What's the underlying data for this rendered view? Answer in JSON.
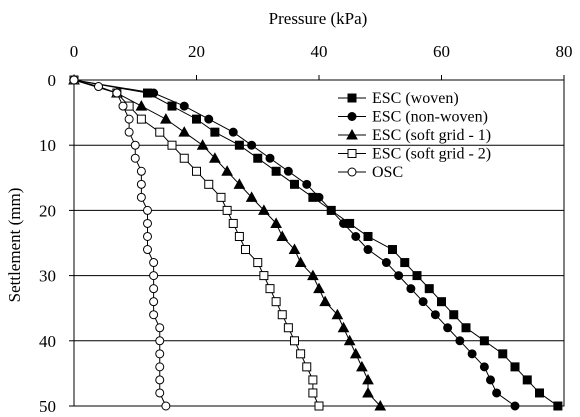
{
  "chart_data": {
    "type": "line",
    "title": "",
    "xlabel": "Pressure (kPa)",
    "ylabel": "Settlement (mm)",
    "x_axis_position": "top",
    "y_axis_inverted": true,
    "xlim": [
      0,
      80
    ],
    "ylim": [
      0,
      50
    ],
    "xticks": [
      "0",
      "20",
      "40",
      "60",
      "80"
    ],
    "yticks": [
      "0",
      "10",
      "20",
      "30",
      "40",
      "50"
    ],
    "grid": "horizontal",
    "legend_position": "top-right",
    "series": [
      {
        "name": "ESC (woven)",
        "marker": "square-filled",
        "points": [
          [
            0,
            0
          ],
          [
            12,
            2
          ],
          [
            16,
            4
          ],
          [
            20,
            6
          ],
          [
            23,
            8
          ],
          [
            27,
            10
          ],
          [
            30,
            12
          ],
          [
            33,
            14
          ],
          [
            36,
            16
          ],
          [
            39,
            18
          ],
          [
            42,
            20
          ],
          [
            45,
            22
          ],
          [
            48,
            24
          ],
          [
            52,
            26
          ],
          [
            54,
            28
          ],
          [
            56,
            30
          ],
          [
            58,
            32
          ],
          [
            60,
            34
          ],
          [
            62,
            36
          ],
          [
            64,
            38
          ],
          [
            67,
            40
          ],
          [
            70,
            42
          ],
          [
            72,
            44
          ],
          [
            74,
            46
          ],
          [
            76,
            48
          ],
          [
            79,
            50
          ]
        ]
      },
      {
        "name": "ESC (non-woven)",
        "marker": "circle-filled",
        "points": [
          [
            0,
            0
          ],
          [
            13,
            2
          ],
          [
            18,
            4
          ],
          [
            22,
            6
          ],
          [
            26,
            8
          ],
          [
            29,
            10
          ],
          [
            32,
            12
          ],
          [
            35,
            14
          ],
          [
            38,
            16
          ],
          [
            40,
            18
          ],
          [
            42,
            20
          ],
          [
            44,
            22
          ],
          [
            46,
            24
          ],
          [
            48,
            26
          ],
          [
            51,
            28
          ],
          [
            53,
            30
          ],
          [
            55,
            32
          ],
          [
            57,
            34
          ],
          [
            59,
            36
          ],
          [
            61,
            38
          ],
          [
            63,
            40
          ],
          [
            65,
            42
          ],
          [
            67,
            44
          ],
          [
            68,
            46
          ],
          [
            69,
            48
          ],
          [
            72,
            50
          ]
        ]
      },
      {
        "name": "ESC (soft grid - 1)",
        "marker": "triangle-filled",
        "points": [
          [
            0,
            0
          ],
          [
            7,
            2
          ],
          [
            11,
            4
          ],
          [
            15,
            6
          ],
          [
            18,
            8
          ],
          [
            21,
            10
          ],
          [
            23,
            12
          ],
          [
            25,
            14
          ],
          [
            27,
            16
          ],
          [
            29,
            18
          ],
          [
            31,
            20
          ],
          [
            33,
            22
          ],
          [
            34,
            24
          ],
          [
            36,
            26
          ],
          [
            37,
            28
          ],
          [
            39,
            30
          ],
          [
            40,
            32
          ],
          [
            41,
            34
          ],
          [
            43,
            36
          ],
          [
            44,
            38
          ],
          [
            45,
            40
          ],
          [
            46,
            42
          ],
          [
            47,
            44
          ],
          [
            48,
            46
          ],
          [
            48,
            48
          ],
          [
            50,
            50
          ]
        ]
      },
      {
        "name": "ESC (soft grid - 2)",
        "marker": "square-open",
        "points": [
          [
            0,
            0
          ],
          [
            7,
            2
          ],
          [
            9,
            4
          ],
          [
            11,
            6
          ],
          [
            14,
            8
          ],
          [
            16,
            10
          ],
          [
            18,
            12
          ],
          [
            20,
            14
          ],
          [
            22,
            16
          ],
          [
            24,
            18
          ],
          [
            25,
            20
          ],
          [
            26,
            22
          ],
          [
            27,
            24
          ],
          [
            28,
            26
          ],
          [
            30,
            28
          ],
          [
            31,
            30
          ],
          [
            32,
            32
          ],
          [
            33,
            34
          ],
          [
            34,
            36
          ],
          [
            35,
            38
          ],
          [
            36,
            40
          ],
          [
            37,
            42
          ],
          [
            38,
            44
          ],
          [
            39,
            46
          ],
          [
            39,
            48
          ],
          [
            40,
            50
          ]
        ]
      },
      {
        "name": "OSC",
        "marker": "circle-open",
        "points": [
          [
            0,
            0
          ],
          [
            4,
            1
          ],
          [
            7,
            2
          ],
          [
            8,
            4
          ],
          [
            9,
            6
          ],
          [
            9,
            8
          ],
          [
            10,
            10
          ],
          [
            10,
            12
          ],
          [
            11,
            14
          ],
          [
            11,
            16
          ],
          [
            11,
            18
          ],
          [
            12,
            20
          ],
          [
            12,
            22
          ],
          [
            12,
            24
          ],
          [
            12,
            26
          ],
          [
            13,
            28
          ],
          [
            13,
            30
          ],
          [
            13,
            32
          ],
          [
            13,
            34
          ],
          [
            13,
            36
          ],
          [
            14,
            38
          ],
          [
            14,
            40
          ],
          [
            14,
            42
          ],
          [
            14,
            44
          ],
          [
            14,
            46
          ],
          [
            14,
            48
          ],
          [
            15,
            50
          ]
        ]
      }
    ]
  }
}
